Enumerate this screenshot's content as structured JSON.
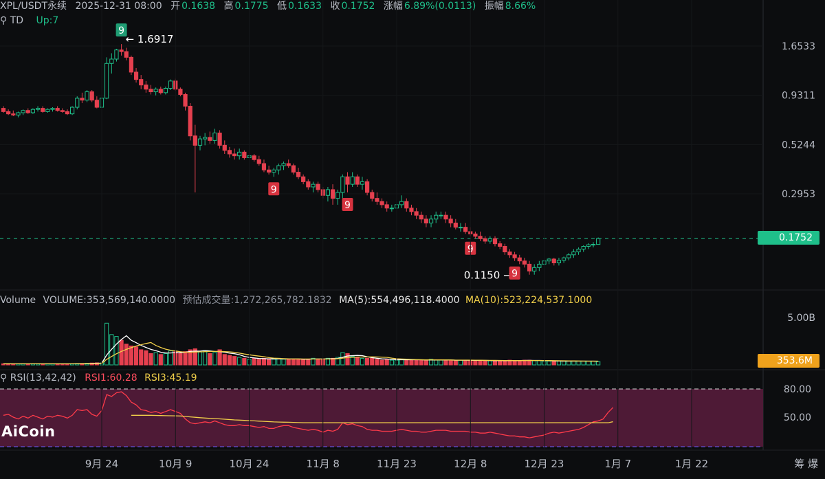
{
  "header": {
    "symbol": "XPL/USDT永续",
    "datetime": "2025-12-31 08:00",
    "open_label": "开",
    "open": "0.1638",
    "high_label": "高",
    "high": "0.1775",
    "low_label": "低",
    "low": "0.1633",
    "close_label": "收",
    "close": "0.1752",
    "change_label": "涨幅",
    "change": "6.89%(0.0113)",
    "amplitude_label": "振幅",
    "amplitude": "8.66%"
  },
  "td": {
    "label": "TD",
    "up": "Up:7"
  },
  "volume_header": {
    "label": "Volume",
    "volume": "VOLUME:353,569,140.0000",
    "estimate": "预估成交量:1,272,265,782.1832",
    "ma5": "MA(5):554,496,118.4000",
    "ma10": "MA(10):523,224,537.1000"
  },
  "rsi_header": {
    "label": "RSI(13,42,42)",
    "rsi1": "RSI1:60.28",
    "rsi3": "RSI3:45.19"
  },
  "logo": "AiCoin",
  "price_tag": "0.1752",
  "volume_tag": "353.6M",
  "colors": {
    "up": "#1fbf8a",
    "down": "#e5404f",
    "ma5": "#ffffff",
    "ma10": "#f2d04a",
    "rsi1": "#ff3b4a",
    "rsi3": "#f2d04a",
    "rsi_band": "#4e1a36",
    "bg": "#0c0d0f"
  },
  "chart_data": [
    {
      "type": "candlestick",
      "title": "XPL/USDT永续",
      "scale": "log",
      "y_ticks": [
        "1.6533",
        "0.9311",
        "0.5244",
        "0.2953"
      ],
      "y_tick_values": [
        1.6533,
        0.9311,
        0.5244,
        0.2953
      ],
      "x_ticks": [
        "9月 24",
        "10月 9",
        "10月 24",
        "11月 8",
        "11月 23",
        "12月 8",
        "12月 23",
        "1月 7",
        "1月 22"
      ],
      "x_tick_dates": [
        "2025-09-24",
        "2025-10-09",
        "2025-10-24",
        "2025-11-08",
        "2025-11-23",
        "2025-12-08",
        "2025-12-23",
        "2026-01-07",
        "2026-01-22"
      ],
      "annotations": [
        {
          "text": "1.6917",
          "type": "high",
          "date": "2025-09-28",
          "value": 1.6917
        },
        {
          "text": "0.1150",
          "type": "low",
          "date": "2025-12-17",
          "value": 0.115
        },
        {
          "text": "9",
          "type": "td-sell",
          "date": "2025-09-28"
        },
        {
          "text": "9",
          "type": "td-buy",
          "date": "2025-10-29"
        },
        {
          "text": "9",
          "type": "td-buy",
          "date": "2025-11-13"
        },
        {
          "text": "9",
          "type": "td-buy",
          "date": "2025-12-08"
        },
        {
          "text": "9",
          "type": "td-buy",
          "date": "2025-12-17"
        }
      ],
      "last_price": 0.1752,
      "candles_ohlc": [
        [
          0.8,
          0.82,
          0.76,
          0.77
        ],
        [
          0.77,
          0.79,
          0.74,
          0.75
        ],
        [
          0.75,
          0.78,
          0.73,
          0.74
        ],
        [
          0.74,
          0.77,
          0.72,
          0.76
        ],
        [
          0.76,
          0.79,
          0.74,
          0.78
        ],
        [
          0.78,
          0.8,
          0.75,
          0.76
        ],
        [
          0.76,
          0.8,
          0.75,
          0.79
        ],
        [
          0.79,
          0.82,
          0.77,
          0.8
        ],
        [
          0.8,
          0.82,
          0.76,
          0.77
        ],
        [
          0.77,
          0.8,
          0.76,
          0.79
        ],
        [
          0.79,
          0.81,
          0.77,
          0.8
        ],
        [
          0.8,
          0.82,
          0.77,
          0.78
        ],
        [
          0.78,
          0.8,
          0.76,
          0.77
        ],
        [
          0.77,
          0.79,
          0.74,
          0.75
        ],
        [
          0.75,
          0.82,
          0.74,
          0.81
        ],
        [
          0.81,
          0.92,
          0.79,
          0.9
        ],
        [
          0.9,
          0.96,
          0.85,
          0.88
        ],
        [
          0.88,
          0.99,
          0.86,
          0.97
        ],
        [
          0.97,
          0.99,
          0.86,
          0.88
        ],
        [
          0.88,
          0.92,
          0.8,
          0.81
        ],
        [
          0.81,
          0.92,
          0.79,
          0.9
        ],
        [
          0.9,
          1.45,
          0.89,
          1.35
        ],
        [
          1.35,
          1.52,
          1.2,
          1.42
        ],
        [
          1.42,
          1.6,
          1.38,
          1.58
        ],
        [
          1.58,
          1.6917,
          1.48,
          1.55
        ],
        [
          1.55,
          1.62,
          1.4,
          1.45
        ],
        [
          1.45,
          1.48,
          1.18,
          1.22
        ],
        [
          1.22,
          1.28,
          1.08,
          1.12
        ],
        [
          1.12,
          1.18,
          1.0,
          1.05
        ],
        [
          1.05,
          1.1,
          0.96,
          1.0
        ],
        [
          1.0,
          1.05,
          0.94,
          0.97
        ],
        [
          0.97,
          1.02,
          0.93,
          1.0
        ],
        [
          1.0,
          1.03,
          0.94,
          0.96
        ],
        [
          0.96,
          1.03,
          0.94,
          1.01
        ],
        [
          1.01,
          1.12,
          0.99,
          1.1
        ],
        [
          1.1,
          1.13,
          0.98,
          1.0
        ],
        [
          1.0,
          1.02,
          0.92,
          0.94
        ],
        [
          0.94,
          0.96,
          0.78,
          0.82
        ],
        [
          0.82,
          0.85,
          0.55,
          0.58
        ],
        [
          0.58,
          0.66,
          0.3,
          0.52
        ],
        [
          0.52,
          0.58,
          0.49,
          0.56
        ],
        [
          0.56,
          0.6,
          0.52,
          0.57
        ],
        [
          0.57,
          0.61,
          0.53,
          0.55
        ],
        [
          0.55,
          0.63,
          0.53,
          0.6
        ],
        [
          0.6,
          0.62,
          0.5,
          0.52
        ],
        [
          0.52,
          0.55,
          0.47,
          0.49
        ],
        [
          0.49,
          0.51,
          0.45,
          0.47
        ],
        [
          0.47,
          0.5,
          0.44,
          0.46
        ],
        [
          0.46,
          0.5,
          0.44,
          0.48
        ],
        [
          0.48,
          0.49,
          0.44,
          0.45
        ],
        [
          0.45,
          0.48,
          0.43,
          0.46
        ],
        [
          0.46,
          0.47,
          0.43,
          0.44
        ],
        [
          0.44,
          0.46,
          0.41,
          0.42
        ],
        [
          0.42,
          0.44,
          0.38,
          0.39
        ],
        [
          0.39,
          0.41,
          0.37,
          0.38
        ],
        [
          0.38,
          0.4,
          0.36,
          0.39
        ],
        [
          0.39,
          0.42,
          0.37,
          0.41
        ],
        [
          0.41,
          0.43,
          0.39,
          0.42
        ],
        [
          0.42,
          0.44,
          0.4,
          0.41
        ],
        [
          0.41,
          0.42,
          0.37,
          0.38
        ],
        [
          0.38,
          0.4,
          0.35,
          0.36
        ],
        [
          0.36,
          0.37,
          0.33,
          0.34
        ],
        [
          0.34,
          0.35,
          0.31,
          0.32
        ],
        [
          0.32,
          0.34,
          0.3,
          0.33
        ],
        [
          0.33,
          0.34,
          0.3,
          0.31
        ],
        [
          0.31,
          0.32,
          0.28,
          0.29
        ],
        [
          0.29,
          0.32,
          0.27,
          0.31
        ],
        [
          0.31,
          0.33,
          0.26,
          0.28
        ],
        [
          0.28,
          0.31,
          0.26,
          0.3
        ],
        [
          0.3,
          0.37,
          0.28,
          0.36
        ],
        [
          0.36,
          0.38,
          0.3,
          0.33
        ],
        [
          0.33,
          0.38,
          0.32,
          0.36
        ],
        [
          0.36,
          0.37,
          0.32,
          0.33
        ],
        [
          0.33,
          0.36,
          0.31,
          0.34
        ],
        [
          0.34,
          0.35,
          0.29,
          0.3
        ],
        [
          0.3,
          0.31,
          0.27,
          0.28
        ],
        [
          0.28,
          0.3,
          0.26,
          0.27
        ],
        [
          0.27,
          0.28,
          0.25,
          0.26
        ],
        [
          0.26,
          0.27,
          0.24,
          0.25
        ],
        [
          0.25,
          0.26,
          0.24,
          0.25
        ],
        [
          0.25,
          0.27,
          0.24,
          0.26
        ],
        [
          0.26,
          0.29,
          0.25,
          0.27
        ],
        [
          0.27,
          0.28,
          0.24,
          0.25
        ],
        [
          0.25,
          0.26,
          0.23,
          0.24
        ],
        [
          0.24,
          0.25,
          0.22,
          0.23
        ],
        [
          0.23,
          0.24,
          0.21,
          0.22
        ],
        [
          0.22,
          0.23,
          0.2,
          0.21
        ],
        [
          0.21,
          0.23,
          0.2,
          0.22
        ],
        [
          0.22,
          0.24,
          0.21,
          0.23
        ],
        [
          0.23,
          0.24,
          0.22,
          0.23
        ],
        [
          0.23,
          0.24,
          0.21,
          0.22
        ],
        [
          0.22,
          0.23,
          0.2,
          0.21
        ],
        [
          0.21,
          0.22,
          0.195,
          0.2
        ],
        [
          0.2,
          0.21,
          0.19,
          0.2
        ],
        [
          0.2,
          0.21,
          0.185,
          0.19
        ],
        [
          0.19,
          0.2,
          0.18,
          0.185
        ],
        [
          0.185,
          0.19,
          0.175,
          0.18
        ],
        [
          0.18,
          0.19,
          0.17,
          0.175
        ],
        [
          0.175,
          0.18,
          0.165,
          0.17
        ],
        [
          0.17,
          0.18,
          0.165,
          0.175
        ],
        [
          0.175,
          0.18,
          0.16,
          0.165
        ],
        [
          0.165,
          0.17,
          0.155,
          0.16
        ],
        [
          0.16,
          0.165,
          0.145,
          0.15
        ],
        [
          0.15,
          0.155,
          0.14,
          0.145
        ],
        [
          0.145,
          0.15,
          0.135,
          0.14
        ],
        [
          0.14,
          0.145,
          0.13,
          0.135
        ],
        [
          0.135,
          0.14,
          0.125,
          0.13
        ],
        [
          0.13,
          0.135,
          0.115,
          0.12
        ],
        [
          0.12,
          0.13,
          0.115,
          0.125
        ],
        [
          0.125,
          0.135,
          0.12,
          0.13
        ],
        [
          0.13,
          0.14,
          0.125,
          0.135
        ],
        [
          0.135,
          0.14,
          0.13,
          0.138
        ],
        [
          0.138,
          0.14,
          0.128,
          0.132
        ],
        [
          0.132,
          0.14,
          0.128,
          0.136
        ],
        [
          0.136,
          0.142,
          0.132,
          0.14
        ],
        [
          0.14,
          0.148,
          0.136,
          0.145
        ],
        [
          0.145,
          0.155,
          0.14,
          0.15
        ],
        [
          0.15,
          0.158,
          0.145,
          0.155
        ],
        [
          0.155,
          0.162,
          0.15,
          0.16
        ],
        [
          0.16,
          0.166,
          0.155,
          0.163
        ],
        [
          0.163,
          0.168,
          0.158,
          0.1638
        ],
        [
          0.1638,
          0.1775,
          0.1633,
          0.1752
        ]
      ]
    },
    {
      "type": "bar",
      "title": "Volume",
      "y_ticks": [
        "5.00B"
      ],
      "y_tick_values": [
        5000000000
      ],
      "last_value": 353569140,
      "values": [
        0.12,
        0.12,
        0.11,
        0.11,
        0.12,
        0.11,
        0.12,
        0.12,
        0.11,
        0.12,
        0.11,
        0.12,
        0.11,
        0.11,
        0.12,
        0.15,
        0.16,
        0.18,
        0.2,
        0.22,
        0.2,
        4.4,
        3.2,
        3.0,
        2.6,
        2.2,
        2.0,
        1.9,
        1.6,
        1.5,
        1.2,
        1.3,
        1.1,
        1.2,
        1.5,
        1.4,
        1.2,
        1.4,
        1.6,
        1.7,
        1.4,
        1.5,
        1.2,
        1.3,
        1.6,
        1.1,
        1.0,
        0.9,
        0.8,
        0.7,
        0.6,
        0.7,
        0.6,
        0.7,
        0.6,
        0.6,
        0.7,
        0.6,
        0.6,
        0.6,
        0.6,
        0.6,
        0.6,
        0.7,
        0.6,
        0.6,
        0.7,
        0.7,
        0.8,
        1.3,
        1.2,
        0.9,
        0.8,
        0.7,
        0.7,
        0.7,
        0.6,
        0.5,
        0.6,
        0.5,
        0.5,
        0.6,
        0.6,
        0.5,
        0.5,
        0.5,
        0.5,
        0.6,
        0.5,
        0.5,
        0.5,
        0.5,
        0.5,
        0.5,
        0.5,
        0.45,
        0.45,
        0.5,
        0.45,
        0.45,
        0.45,
        0.45,
        0.45,
        0.5,
        0.45,
        0.45,
        0.5,
        0.5,
        0.45,
        0.45,
        0.4,
        0.4,
        0.4,
        0.4,
        0.4,
        0.4,
        0.4,
        0.4,
        0.4,
        0.4,
        0.4,
        0.35
      ],
      "value_unit": "B"
    },
    {
      "type": "line",
      "title": "RSI(13,42,42)",
      "y_ticks": [
        "80.00",
        "50.00"
      ],
      "y_tick_values": [
        80,
        50
      ],
      "y_range": [
        20,
        80
      ],
      "series": [
        {
          "name": "RSI1",
          "last": 60.28,
          "values": [
            52,
            53,
            50,
            48,
            51,
            49,
            52,
            50,
            48,
            51,
            50,
            52,
            51,
            49,
            52,
            58,
            57,
            58,
            53,
            51,
            57,
            74,
            72,
            76,
            77,
            73,
            66,
            63,
            58,
            57,
            55,
            56,
            54,
            56,
            58,
            56,
            54,
            48,
            44,
            43,
            44,
            45,
            44,
            46,
            44,
            42,
            41,
            41,
            42,
            41,
            41,
            40,
            39,
            40,
            38,
            38,
            40,
            41,
            41,
            39,
            38,
            37,
            36,
            37,
            36,
            34,
            36,
            35,
            37,
            44,
            42,
            43,
            41,
            40,
            37,
            36,
            36,
            35,
            35,
            35,
            36,
            37,
            36,
            35,
            35,
            34,
            34,
            35,
            36,
            36,
            36,
            35,
            35,
            35,
            35,
            34,
            34,
            33,
            33,
            34,
            33,
            32,
            31,
            30,
            30,
            29,
            29,
            28,
            29,
            30,
            31,
            33,
            34,
            33,
            34,
            35,
            36,
            37,
            39,
            42,
            45,
            46,
            48,
            55,
            60.28
          ]
        },
        {
          "name": "RSI3",
          "last": 45.19,
          "values": []
        }
      ]
    }
  ]
}
